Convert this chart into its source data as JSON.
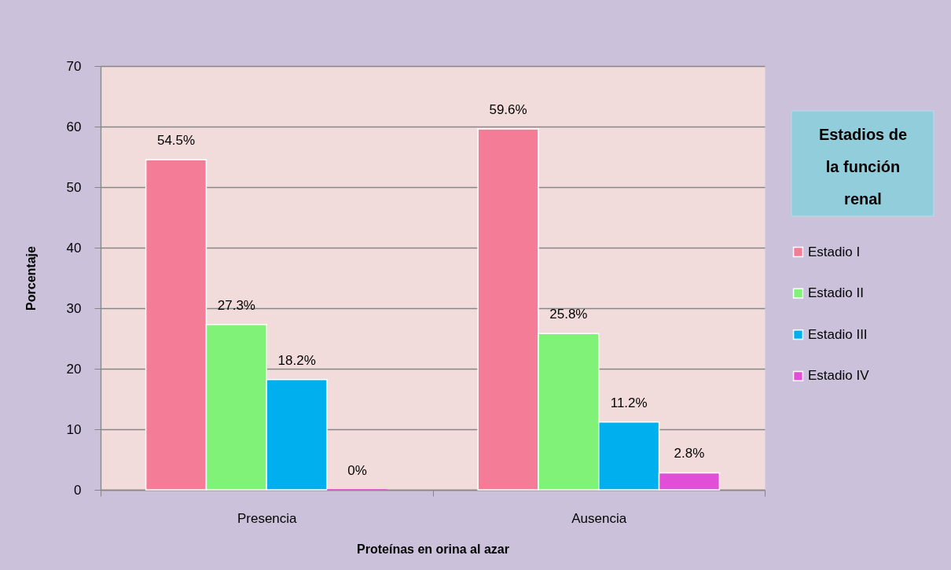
{
  "chart_data": {
    "type": "bar",
    "xlabel": "Proteínas en  orina al azar",
    "ylabel": "Porcentaje",
    "legend_title": "Estadios de la función renal",
    "categories": [
      "Presencia",
      "Ausencia"
    ],
    "series": [
      {
        "name": "Estadio I",
        "color": "#f47c96",
        "values": [
          54.5,
          59.6
        ],
        "value_labels": [
          "54.5%",
          "59.6%"
        ]
      },
      {
        "name": "Estadio II",
        "color": "#80f277",
        "values": [
          27.3,
          25.8
        ],
        "value_labels": [
          "27.3%",
          "25.8%"
        ]
      },
      {
        "name": "Estadio III",
        "color": "#00b0ee",
        "values": [
          18.2,
          11.2
        ],
        "value_labels": [
          "18.2%",
          "11.2%"
        ]
      },
      {
        "name": "Estadio IV",
        "color": "#e24fd6",
        "values": [
          0,
          2.8
        ],
        "value_labels": [
          "0%",
          "2.8%"
        ]
      }
    ],
    "ylim": [
      0,
      70
    ],
    "yticks": [
      0,
      10,
      20,
      30,
      40,
      50,
      60,
      70
    ],
    "grid": "y",
    "legend": "right"
  }
}
